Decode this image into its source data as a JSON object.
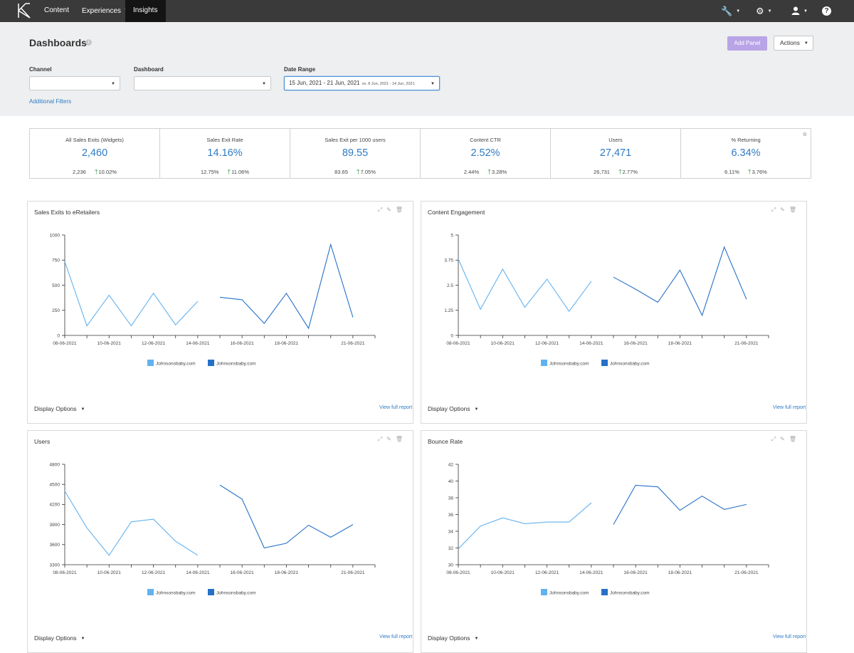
{
  "nav": {
    "items": [
      {
        "label": "Content",
        "dropdown": false,
        "active": false
      },
      {
        "label": "Experiences",
        "dropdown": true,
        "active": false
      },
      {
        "label": "Insights",
        "dropdown": true,
        "active": true
      }
    ],
    "icons": [
      "wrench-icon",
      "gear-icon",
      "user-icon",
      "help-icon"
    ],
    "help_glyph": "?"
  },
  "header": {
    "title": "Dashboards",
    "add_panel_label": "Add Panel",
    "actions_label": "Actions",
    "filters": {
      "channel_label": "Channel",
      "channel_value": "",
      "dashboard_label": "Dashboard",
      "dashboard_value": "",
      "date_range_label": "Date Range",
      "date_range_value": "15 Jun, 2021 - 21 Jun, 2021",
      "date_range_compare": "vs. 8 Jun, 2021 - 14 Jun, 2021"
    },
    "additional_filters": "Additional Filters"
  },
  "kpis": [
    {
      "label": "All Sales Exits (Widgets)",
      "value": "2,460",
      "previous": "2,236",
      "change": "10.02%"
    },
    {
      "label": "Sales Exit Rate",
      "value": "14.16%",
      "previous": "12.75%",
      "change": "11.06%"
    },
    {
      "label": "Sales Exit per 1000 users",
      "value": "89.55",
      "previous": "83.65",
      "change": "7.05%"
    },
    {
      "label": "Content CTR",
      "value": "2.52%",
      "previous": "2.44%",
      "change": "3.28%"
    },
    {
      "label": "Users",
      "value": "27,471",
      "previous": "26,731",
      "change": "2.77%"
    },
    {
      "label": "% Returning",
      "value": "6.34%",
      "previous": "6.11%",
      "change": "3.76%"
    }
  ],
  "panels": [
    {
      "title": "Sales Exits to eRetailers",
      "display_options": "Display Options",
      "view_report": "View full report"
    },
    {
      "title": "Content Engagement",
      "display_options": "Display Options",
      "view_report": "View full report"
    },
    {
      "title": "Users",
      "display_options": "Display Options",
      "view_report": "View full report"
    },
    {
      "title": "Bounce Rate",
      "display_options": "Display Options",
      "view_report": "View full report"
    }
  ],
  "colors": {
    "previous_series": "#62b2f0",
    "current_series": "#2671c7",
    "accent": "#2e7bc4",
    "add_panel": "#b8a4e6"
  },
  "chart_data": [
    {
      "type": "line",
      "title": "Sales Exits to eRetailers",
      "ylim": [
        0,
        1000
      ],
      "yticks": [
        "0",
        "250",
        "500",
        "750",
        "1000"
      ],
      "xticks": [
        "08-06-2021",
        "10-06-2021",
        "12-06-2021",
        "14-06-2021",
        "16-06-2021",
        "18-06-2021",
        "21-06-2021"
      ],
      "series": [
        {
          "name": "Johnsonsbaby.com",
          "x": [
            "08-06-2021",
            "09-06-2021",
            "10-06-2021",
            "11-06-2021",
            "12-06-2021",
            "13-06-2021",
            "14-06-2021"
          ],
          "values": [
            735,
            95,
            400,
            95,
            420,
            105,
            340
          ]
        },
        {
          "name": "Johnsonsbaby.com",
          "x": [
            "15-06-2021",
            "16-06-2021",
            "17-06-2021",
            "18-06-2021",
            "19-06-2021",
            "20-06-2021",
            "21-06-2021"
          ],
          "values": [
            380,
            355,
            120,
            420,
            70,
            905,
            180
          ]
        }
      ]
    },
    {
      "type": "line",
      "title": "Content Engagement",
      "ylim": [
        0,
        5
      ],
      "yticks": [
        "0",
        "1.25",
        "2.5",
        "3.75",
        "5"
      ],
      "xticks": [
        "08-06-2021",
        "10-06-2021",
        "12-06-2021",
        "14-06-2021",
        "16-06-2021",
        "18-06-2021",
        "21-06-2021"
      ],
      "series": [
        {
          "name": "Johnsonsbaby.com",
          "x": [
            "08-06-2021",
            "09-06-2021",
            "10-06-2021",
            "11-06-2021",
            "12-06-2021",
            "13-06-2021",
            "14-06-2021"
          ],
          "values": [
            3.8,
            1.3,
            3.3,
            1.4,
            2.8,
            1.2,
            2.7
          ]
        },
        {
          "name": "Johnsonsbaby.com",
          "x": [
            "15-06-2021",
            "16-06-2021",
            "17-06-2021",
            "18-06-2021",
            "19-06-2021",
            "20-06-2021",
            "21-06-2021"
          ],
          "values": [
            2.9,
            2.3,
            1.65,
            3.25,
            1.0,
            4.4,
            1.8
          ]
        }
      ]
    },
    {
      "type": "line",
      "title": "Users",
      "ylim": [
        3300,
        4800
      ],
      "yticks": [
        "3300",
        "3600",
        "3900",
        "4200",
        "4500",
        "4800"
      ],
      "xticks": [
        "08-06-2021",
        "10-06-2021",
        "12-06-2021",
        "14-06-2021",
        "16-06-2021",
        "18-06-2021",
        "21-06-2021"
      ],
      "series": [
        {
          "name": "Johnsonsbaby.com",
          "x": [
            "08-06-2021",
            "09-06-2021",
            "10-06-2021",
            "11-06-2021",
            "12-06-2021",
            "13-06-2021",
            "14-06-2021"
          ],
          "values": [
            4400,
            3850,
            3440,
            3940,
            3980,
            3650,
            3440
          ]
        },
        {
          "name": "Johnsonsbaby.com",
          "x": [
            "15-06-2021",
            "16-06-2021",
            "17-06-2021",
            "18-06-2021",
            "19-06-2021",
            "20-06-2021",
            "21-06-2021"
          ],
          "values": [
            4490,
            4280,
            3550,
            3620,
            3890,
            3710,
            3900
          ]
        }
      ]
    },
    {
      "type": "line",
      "title": "Bounce Rate",
      "ylim": [
        30,
        42
      ],
      "yticks": [
        "30",
        "32",
        "34",
        "36",
        "38",
        "40",
        "42"
      ],
      "xticks": [
        "08-06-2021",
        "10-06-2021",
        "12-06-2021",
        "14-06-2021",
        "16-06-2021",
        "18-06-2021",
        "21-06-2021"
      ],
      "series": [
        {
          "name": "Johnsonsbaby.com",
          "x": [
            "08-06-2021",
            "09-06-2021",
            "10-06-2021",
            "11-06-2021",
            "12-06-2021",
            "13-06-2021",
            "14-06-2021"
          ],
          "values": [
            31.9,
            34.6,
            35.6,
            34.9,
            35.1,
            35.1,
            37.4
          ]
        },
        {
          "name": "Johnsonsbaby.com",
          "x": [
            "15-06-2021",
            "16-06-2021",
            "17-06-2021",
            "18-06-2021",
            "19-06-2021",
            "20-06-2021",
            "21-06-2021"
          ],
          "values": [
            34.8,
            39.5,
            39.3,
            36.5,
            38.2,
            36.6,
            37.2
          ]
        }
      ]
    }
  ]
}
